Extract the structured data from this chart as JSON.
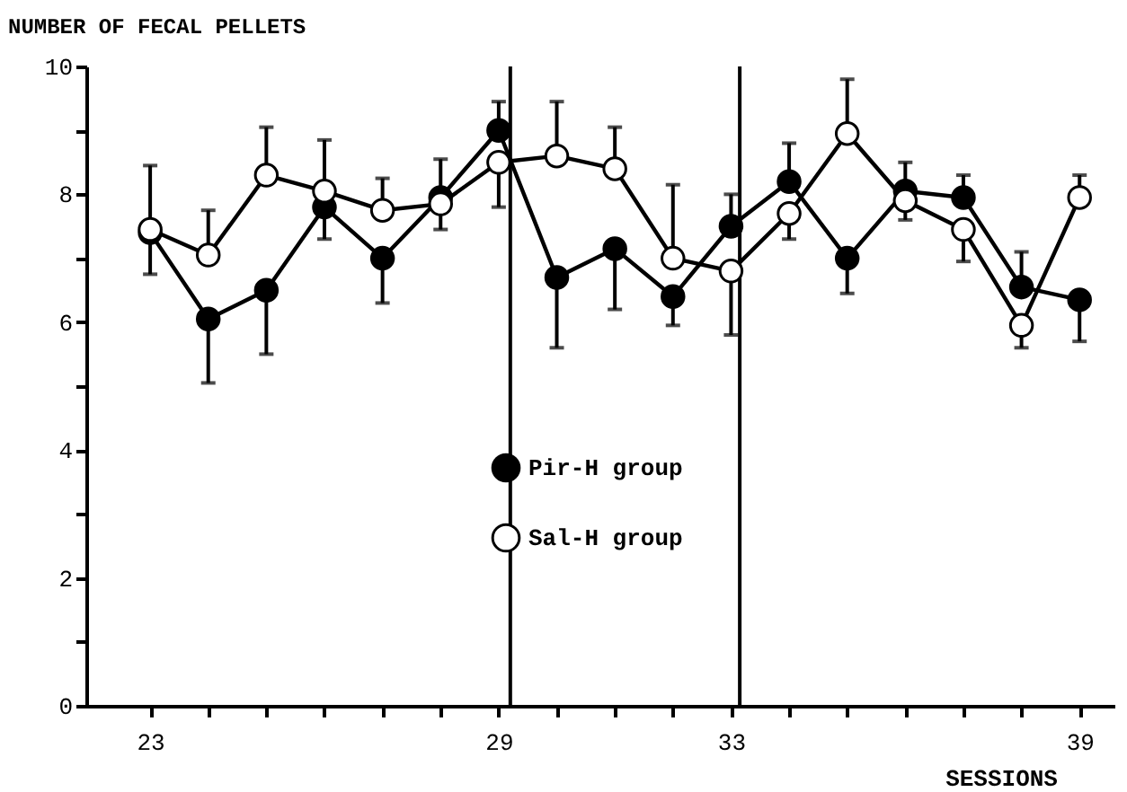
{
  "chart_data": {
    "type": "line",
    "xlabel": "SESSIONS",
    "ylabel": "NUMBER OF FECAL PELLETS",
    "x": [
      23,
      24,
      25,
      26,
      27,
      28,
      29,
      30,
      31,
      32,
      33,
      34,
      35,
      36,
      37,
      38,
      39
    ],
    "series": [
      {
        "name": "Pir-H group",
        "color": "#000000",
        "values": [
          7.4,
          6.05,
          6.5,
          7.8,
          7.0,
          7.95,
          9.0,
          6.7,
          7.15,
          6.4,
          7.5,
          8.2,
          7.0,
          8.05,
          7.95,
          6.55,
          6.35
        ],
        "errors": [
          [
            6.75,
            7.4
          ],
          [
            5.05,
            6.05
          ],
          [
            5.5,
            6.5
          ],
          [
            7.3,
            7.8
          ],
          [
            6.3,
            7.0
          ],
          [
            7.95,
            8.55
          ],
          [
            9.0,
            9.45
          ],
          [
            5.6,
            6.7
          ],
          [
            6.2,
            7.15
          ],
          [
            5.95,
            6.4
          ],
          [
            7.5,
            8.0
          ],
          [
            8.2,
            8.8
          ],
          [
            6.45,
            7.0
          ],
          [
            8.05,
            8.5
          ],
          [
            7.95,
            8.3
          ],
          [
            6.55,
            7.1
          ],
          [
            5.7,
            6.35
          ]
        ]
      },
      {
        "name": "Sal-H group",
        "color": "#ffffff",
        "values": [
          7.45,
          7.05,
          8.3,
          8.05,
          7.75,
          7.85,
          8.5,
          8.6,
          8.4,
          7.0,
          6.8,
          7.7,
          8.95,
          7.9,
          7.45,
          5.95,
          7.95
        ],
        "errors": [
          [
            7.45,
            8.45
          ],
          [
            7.05,
            7.75
          ],
          [
            8.3,
            9.05
          ],
          [
            8.05,
            8.85
          ],
          [
            7.75,
            8.25
          ],
          [
            7.45,
            7.85
          ],
          [
            7.8,
            8.5
          ],
          [
            8.6,
            9.45
          ],
          [
            8.4,
            9.05
          ],
          [
            7.0,
            8.15
          ],
          [
            5.8,
            6.8
          ],
          [
            7.3,
            7.7
          ],
          [
            8.95,
            9.8
          ],
          [
            7.6,
            7.9
          ],
          [
            6.95,
            7.45
          ],
          [
            5.6,
            5.95
          ],
          [
            7.95,
            8.3
          ]
        ]
      }
    ],
    "xlim": [
      21.9,
      39.6
    ],
    "xticks": [
      23,
      {
        "value": 24,
        "label": null
      },
      {
        "value": 25,
        "label": null
      },
      {
        "value": 26,
        "label": null
      },
      {
        "value": 27,
        "label": null
      },
      {
        "value": 28,
        "label": null
      },
      29,
      {
        "value": 30,
        "label": null
      },
      {
        "value": 31,
        "label": null
      },
      {
        "value": 32,
        "label": null
      },
      33,
      {
        "value": 34,
        "label": null
      },
      {
        "value": 35,
        "label": null
      },
      {
        "value": 36,
        "label": null
      },
      {
        "value": 37,
        "label": null
      },
      {
        "value": 38,
        "label": null
      },
      39
    ],
    "ylim": [
      0,
      10
    ],
    "yticks": [
      0,
      {
        "value": 1,
        "label": null
      },
      2,
      {
        "value": 3,
        "label": null
      },
      4,
      {
        "value": 5,
        "label": null
      },
      6,
      {
        "value": 7,
        "label": null
      },
      8,
      {
        "value": 9,
        "label": null
      },
      10
    ],
    "ref_lines": [
      {
        "axis": "x",
        "value": 29.2,
        "color": "#000000"
      },
      {
        "axis": "x",
        "value": 33.15,
        "color": "#000000"
      }
    ],
    "marker": "circle",
    "line_style": "solid",
    "grid": false,
    "legend": "bottom"
  }
}
